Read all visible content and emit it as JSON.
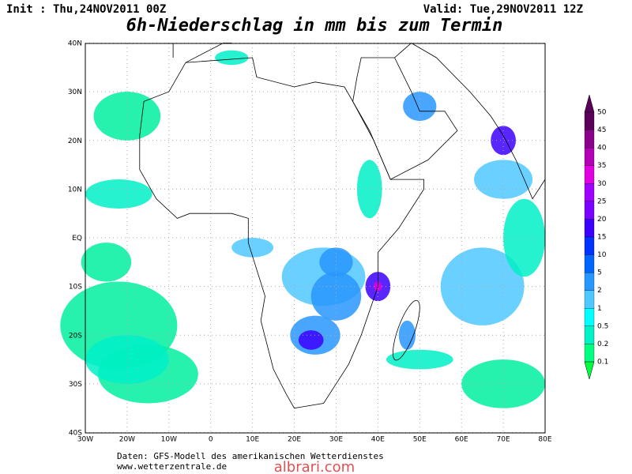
{
  "header": {
    "init": "Init : Thu,24NOV2011 00Z",
    "valid": "Valid: Tue,29NOV2011 12Z",
    "title": "6h-Niederschlag in mm bis zum Termin"
  },
  "map": {
    "lon_labels": [
      "30W",
      "20W",
      "10W",
      "0",
      "10E",
      "20E",
      "30E",
      "40E",
      "50E",
      "60E",
      "70E",
      "80E"
    ],
    "lat_labels": [
      "40N",
      "30N",
      "20N",
      "10N",
      "EQ",
      "10S",
      "20S",
      "30S",
      "40S"
    ]
  },
  "legend": {
    "levels": [
      50,
      45,
      40,
      35,
      30,
      25,
      20,
      15,
      10,
      5,
      2,
      1,
      0.5,
      0.2,
      0.1
    ],
    "colors": [
      "#5a005a",
      "#8a008a",
      "#b400b4",
      "#e000e0",
      "#a000ff",
      "#7a00ff",
      "#3c00ff",
      "#0032ff",
      "#0064ff",
      "#2896ff",
      "#50c8ff",
      "#00ffff",
      "#00f0c8",
      "#00ff80"
    ]
  },
  "footer": {
    "source": "Daten: GFS-Modell des amerikanischen Wetterdienstes",
    "url": "www.wetterzentrale.de"
  },
  "watermark": "albrari.com"
}
